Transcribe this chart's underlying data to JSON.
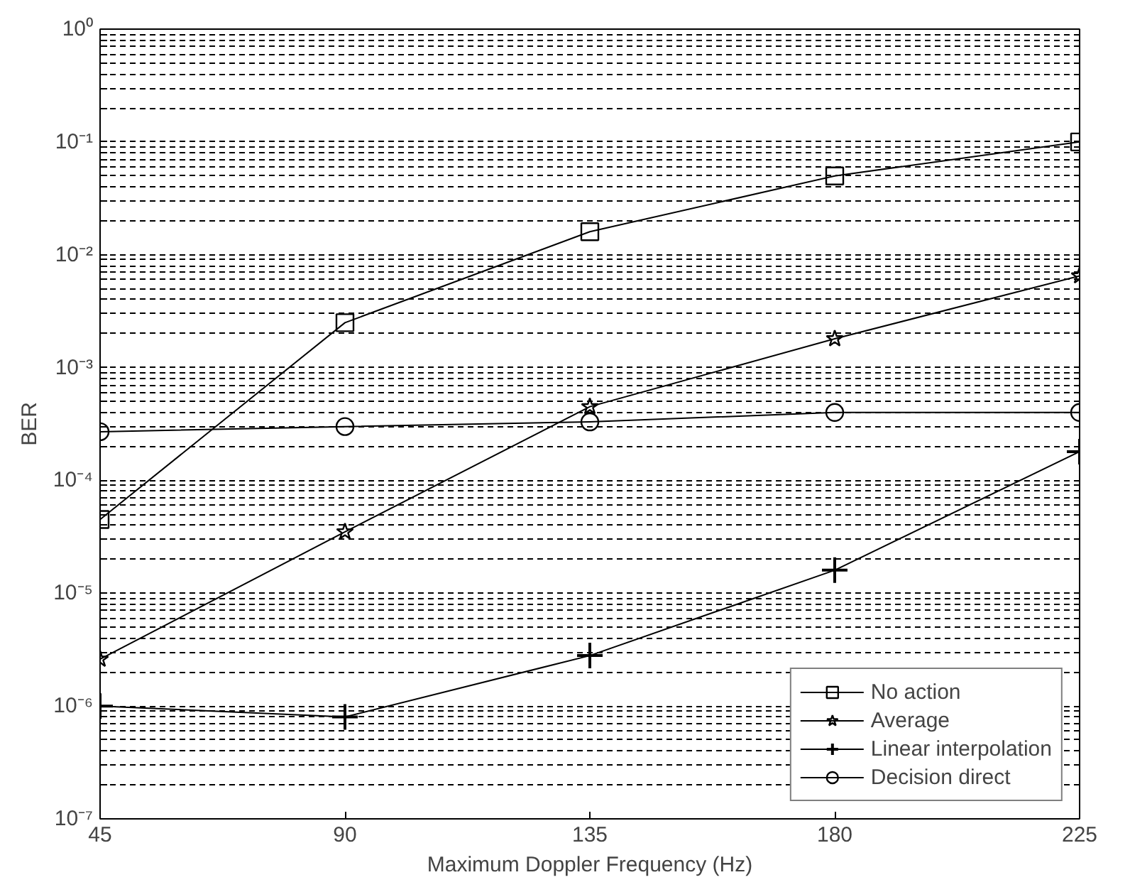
{
  "chart_data": {
    "type": "line",
    "xlabel": "Maximum Doppler Frequency (Hz)",
    "ylabel": "BER",
    "log": "y",
    "x": [
      45,
      90,
      135,
      180,
      225
    ],
    "xlim": [
      45,
      225
    ],
    "xticks": [
      45,
      90,
      135,
      180,
      225
    ],
    "ylim": [
      1e-07,
      1
    ],
    "yticks": [
      {
        "value": 1e-07,
        "label": "10⁻⁷"
      },
      {
        "value": 2e-07,
        "label": null
      },
      {
        "value": 3e-07,
        "label": null
      },
      {
        "value": 4e-07,
        "label": null
      },
      {
        "value": 5e-07,
        "label": null
      },
      {
        "value": 6e-07,
        "label": null
      },
      {
        "value": 7e-07,
        "label": null
      },
      {
        "value": 8e-07,
        "label": null
      },
      {
        "value": 9e-07,
        "label": null
      },
      {
        "value": 1e-06,
        "label": "10⁻⁶"
      },
      {
        "value": 2e-06,
        "label": null
      },
      {
        "value": 3e-06,
        "label": null
      },
      {
        "value": 4e-06,
        "label": null
      },
      {
        "value": 5e-06,
        "label": null
      },
      {
        "value": 6e-06,
        "label": null
      },
      {
        "value": 7e-06,
        "label": null
      },
      {
        "value": 8e-06,
        "label": null
      },
      {
        "value": 9e-06,
        "label": null
      },
      {
        "value": 1e-05,
        "label": "10⁻⁵"
      },
      {
        "value": 2e-05,
        "label": null
      },
      {
        "value": 3e-05,
        "label": null
      },
      {
        "value": 4e-05,
        "label": null
      },
      {
        "value": 5e-05,
        "label": null
      },
      {
        "value": 6e-05,
        "label": null
      },
      {
        "value": 7e-05,
        "label": null
      },
      {
        "value": 8e-05,
        "label": null
      },
      {
        "value": 9e-05,
        "label": null
      },
      {
        "value": 0.0001,
        "label": "10⁻⁴"
      },
      {
        "value": 0.0002,
        "label": null
      },
      {
        "value": 0.0003,
        "label": null
      },
      {
        "value": 0.0004,
        "label": null
      },
      {
        "value": 0.0005,
        "label": null
      },
      {
        "value": 0.0006,
        "label": null
      },
      {
        "value": 0.0007,
        "label": null
      },
      {
        "value": 0.0008,
        "label": null
      },
      {
        "value": 0.0009,
        "label": null
      },
      {
        "value": 0.001,
        "label": "10⁻³"
      },
      {
        "value": 0.002,
        "label": null
      },
      {
        "value": 0.003,
        "label": null
      },
      {
        "value": 0.004,
        "label": null
      },
      {
        "value": 0.005,
        "label": null
      },
      {
        "value": 0.006,
        "label": null
      },
      {
        "value": 0.007,
        "label": null
      },
      {
        "value": 0.008,
        "label": null
      },
      {
        "value": 0.009,
        "label": null
      },
      {
        "value": 0.01,
        "label": "10⁻²"
      },
      {
        "value": 0.02,
        "label": null
      },
      {
        "value": 0.03,
        "label": null
      },
      {
        "value": 0.04,
        "label": null
      },
      {
        "value": 0.05,
        "label": null
      },
      {
        "value": 0.06,
        "label": null
      },
      {
        "value": 0.07,
        "label": null
      },
      {
        "value": 0.08,
        "label": null
      },
      {
        "value": 0.09,
        "label": null
      },
      {
        "value": 0.1,
        "label": "10⁻¹"
      },
      {
        "value": 0.2,
        "label": null
      },
      {
        "value": 0.3,
        "label": null
      },
      {
        "value": 0.4,
        "label": null
      },
      {
        "value": 0.5,
        "label": null
      },
      {
        "value": 0.6,
        "label": null
      },
      {
        "value": 0.7,
        "label": null
      },
      {
        "value": 0.8,
        "label": null
      },
      {
        "value": 0.9,
        "label": null
      },
      {
        "value": 1,
        "label": "10⁰"
      }
    ],
    "grid": "y",
    "legend": "bottom right",
    "line_style": "solid",
    "series": [
      {
        "name": "No action",
        "color": "#000000",
        "marker": "square",
        "values": [
          4.5e-05,
          0.0025,
          0.016,
          0.05,
          0.1
        ]
      },
      {
        "name": "Average",
        "color": "#000000",
        "marker": "star",
        "values": [
          2.6e-06,
          3.5e-05,
          0.00045,
          0.0018,
          0.0065
        ]
      },
      {
        "name": "Linear interpolation",
        "color": "#000000",
        "marker": "cross",
        "values": [
          1e-06,
          8e-07,
          2.8e-06,
          1.6e-05,
          0.00018
        ]
      },
      {
        "name": "Decision direct",
        "color": "#000000",
        "marker": "circle",
        "values": [
          0.00027,
          0.0003,
          0.00033,
          0.0004,
          0.0004
        ]
      }
    ]
  }
}
